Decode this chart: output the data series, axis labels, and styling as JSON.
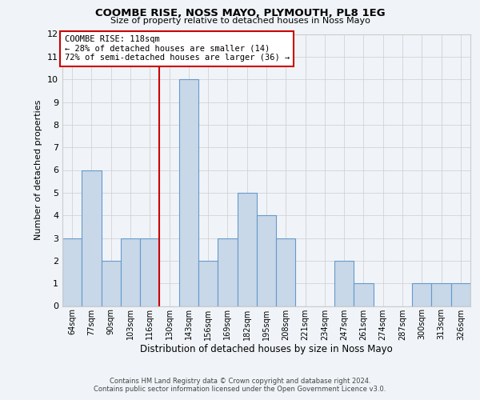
{
  "title": "COOMBE RISE, NOSS MAYO, PLYMOUTH, PL8 1EG",
  "subtitle": "Size of property relative to detached houses in Noss Mayo",
  "xlabel": "Distribution of detached houses by size in Noss Mayo",
  "ylabel": "Number of detached properties",
  "categories": [
    "64sqm",
    "77sqm",
    "90sqm",
    "103sqm",
    "116sqm",
    "130sqm",
    "143sqm",
    "156sqm",
    "169sqm",
    "182sqm",
    "195sqm",
    "208sqm",
    "221sqm",
    "234sqm",
    "247sqm",
    "261sqm",
    "274sqm",
    "287sqm",
    "300sqm",
    "313sqm",
    "326sqm"
  ],
  "values": [
    3,
    6,
    2,
    3,
    3,
    0,
    10,
    2,
    3,
    5,
    4,
    3,
    0,
    0,
    2,
    1,
    0,
    0,
    1,
    1,
    1
  ],
  "bar_color": "#c8d8e8",
  "bar_edge_color": "#6699cc",
  "vline_x_index": 4,
  "vline_color": "#cc0000",
  "annotation_title": "COOMBE RISE: 118sqm",
  "annotation_line1": "← 28% of detached houses are smaller (14)",
  "annotation_line2": "72% of semi-detached houses are larger (36) →",
  "annotation_box_color": "#ffffff",
  "annotation_box_edge_color": "#cc0000",
  "ylim": [
    0,
    12
  ],
  "yticks": [
    0,
    1,
    2,
    3,
    4,
    5,
    6,
    7,
    8,
    9,
    10,
    11,
    12
  ],
  "grid_color": "#cccccc",
  "background_color": "#f0f4f8",
  "footer_line1": "Contains HM Land Registry data © Crown copyright and database right 2024.",
  "footer_line2": "Contains public sector information licensed under the Open Government Licence v3.0."
}
